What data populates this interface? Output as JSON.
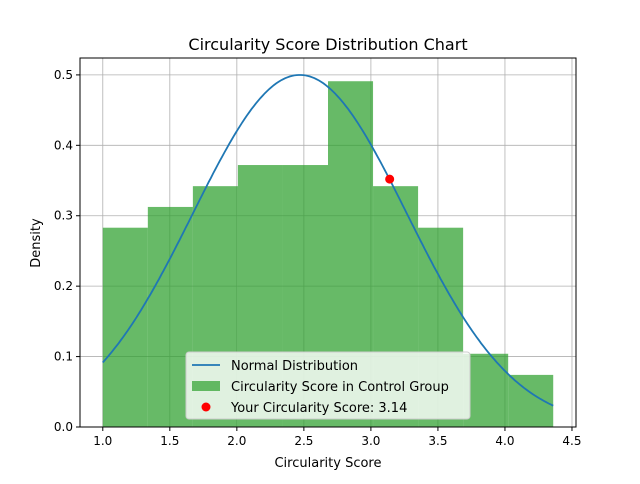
{
  "chart_data": {
    "type": "bar",
    "title": "Circularity Score Distribution Chart",
    "xlabel": "Circularity Score",
    "ylabel": "Density",
    "xlim": [
      0.83,
      4.53
    ],
    "ylim": [
      0,
      0.524
    ],
    "xticks": [
      1.0,
      1.5,
      2.0,
      2.5,
      3.0,
      3.5,
      4.0,
      4.5
    ],
    "xtick_labels": [
      "1.0",
      "1.5",
      "2.0",
      "2.5",
      "3.0",
      "3.5",
      "4.0",
      "4.5"
    ],
    "yticks": [
      0.0,
      0.1,
      0.2,
      0.3,
      0.4,
      0.5
    ],
    "ytick_labels": [
      "0.0",
      "0.1",
      "0.2",
      "0.3",
      "0.4",
      "0.5"
    ],
    "grid": true,
    "histogram": {
      "name": "Circularity Score in Control Group",
      "color": "#2ca02c",
      "bin_edges": [
        1.0,
        1.336,
        1.672,
        2.008,
        2.344,
        2.68,
        3.016,
        3.352,
        3.688,
        4.024,
        4.36
      ],
      "values": [
        0.283,
        0.3125,
        0.342,
        0.372,
        0.372,
        0.491,
        0.342,
        0.283,
        0.104,
        0.074
      ]
    },
    "normal_curve": {
      "name": "Normal Distribution",
      "color": "#1f77b4",
      "mean": 2.47,
      "std": 0.798,
      "x_range": [
        1.0,
        4.36
      ]
    },
    "point": {
      "name": "Your Circularity Score: 3.14",
      "color": "#ff0000",
      "x": 3.14,
      "y": 0.352
    },
    "legend": {
      "placement": "lower-center",
      "entries": [
        "Normal Distribution",
        "Circularity Score in Control Group",
        "Your Circularity Score: 3.14"
      ]
    }
  }
}
